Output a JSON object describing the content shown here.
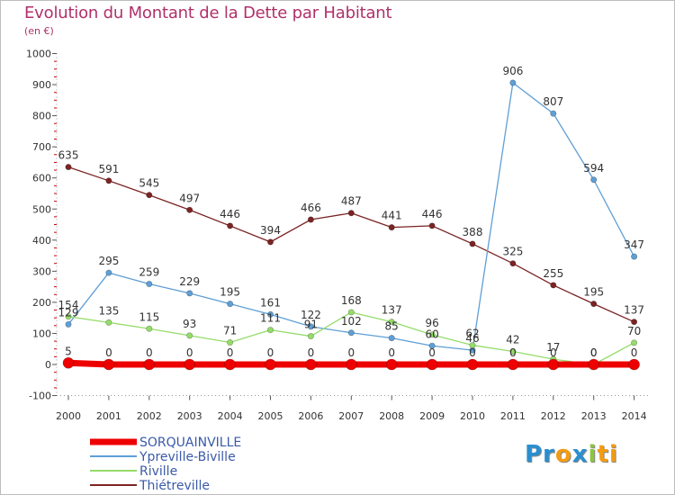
{
  "title": "Evolution du Montant de la Dette par Habitant",
  "subtitle": "(en €)",
  "logo": {
    "parts": [
      {
        "t": "Pr",
        "c": "#2a8fd0"
      },
      {
        "t": "o",
        "c": "#f39c12"
      },
      {
        "t": "x",
        "c": "#2a8fd0"
      },
      {
        "t": "i",
        "c": "#8cc63f"
      },
      {
        "t": "ti",
        "c": "#f39c12"
      }
    ]
  },
  "chart_data": {
    "type": "line",
    "x": [
      "2000",
      "2001",
      "2002",
      "2003",
      "2004",
      "2005",
      "2006",
      "2007",
      "2008",
      "2009",
      "2010",
      "2011",
      "2012",
      "2013",
      "2014"
    ],
    "ylim": [
      -100,
      1000
    ],
    "yticks": [
      "-100",
      "0",
      "100",
      "200",
      "300",
      "400",
      "500",
      "600",
      "700",
      "800",
      "900",
      "1000"
    ],
    "grid": false,
    "legend_placement": "bottom-left",
    "series": [
      {
        "name": "Thiétreville",
        "color": "#7b2424",
        "width": 1.3,
        "marker": 3.2,
        "values": [
          635,
          591,
          545,
          497,
          446,
          394,
          466,
          487,
          441,
          446,
          388,
          325,
          255,
          195,
          137
        ],
        "labels": [
          "635",
          "591",
          "545",
          "497",
          "446",
          "394",
          "466",
          "487",
          "441",
          "446",
          "388",
          "325",
          "255",
          "195",
          "137"
        ]
      },
      {
        "name": "Ypreville-Biville",
        "color": "#5f9fd6",
        "width": 1.3,
        "marker": 3.2,
        "values": [
          129,
          295,
          259,
          229,
          195,
          161,
          122,
          102,
          85,
          60,
          46,
          906,
          807,
          594,
          347
        ],
        "labels": [
          "129",
          "295",
          "259",
          "229",
          "195",
          "161",
          "122",
          "102",
          "85",
          "60",
          "46",
          "906",
          "807",
          "594",
          "347"
        ]
      },
      {
        "name": "Riville",
        "color": "#95dc6a",
        "width": 1.3,
        "marker": 3.2,
        "values": [
          154,
          135,
          115,
          93,
          71,
          111,
          91,
          168,
          137,
          96,
          62,
          42,
          17,
          0,
          70
        ],
        "labels": [
          "154",
          "135",
          "115",
          "93",
          "71",
          "111",
          "91",
          "168",
          "137",
          "96",
          "62",
          "42",
          "17",
          "0",
          "70"
        ]
      },
      {
        "name": "SORQUAINVILLE",
        "color": "#ee0000",
        "width": 7,
        "marker": 6,
        "values": [
          5,
          0,
          0,
          0,
          0,
          0,
          0,
          0,
          0,
          0,
          0,
          0,
          0,
          0,
          0
        ],
        "labels": [
          "5",
          "0",
          "0",
          "0",
          "0",
          "0",
          "0",
          "0",
          "0",
          "0",
          "0",
          "0",
          "0",
          "0",
          "0"
        ]
      }
    ],
    "legend": [
      "SORQUAINVILLE",
      "Ypreville-Biville",
      "Riville",
      "Thiétreville"
    ]
  }
}
